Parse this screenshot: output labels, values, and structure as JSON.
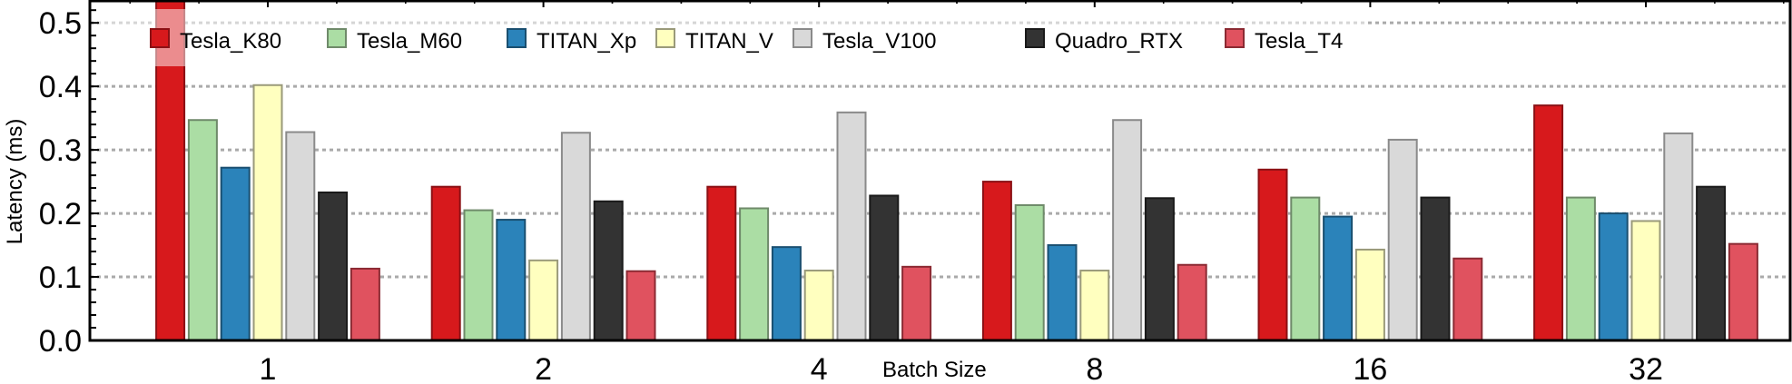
{
  "chart_data": {
    "type": "bar",
    "title": "",
    "xlabel": "Batch Size",
    "ylabel": "Latency (ms)",
    "ylim": [
      0.0,
      0.536
    ],
    "yticks": [
      "0.0",
      "0.1",
      "0.2",
      "0.3",
      "0.4",
      "0.5"
    ],
    "ytick_values": [
      0.0,
      0.1,
      0.2,
      0.3,
      0.4,
      0.5
    ],
    "grid": "horizontal-dotted",
    "legend_position": "top (single row inside plot)",
    "categories": [
      "1",
      "2",
      "4",
      "8",
      "16",
      "32"
    ],
    "series": [
      {
        "name": "Tesla_K80",
        "color": "#d7191c",
        "edge": "#8b1014",
        "values": [
          0.6,
          0.242,
          0.242,
          0.25,
          0.269,
          0.37
        ],
        "note": "batch 1 value exceeds axis (clipped)"
      },
      {
        "name": "Tesla_M60",
        "color": "#abdda4",
        "edge": "#6f8a6a",
        "values": [
          0.347,
          0.205,
          0.208,
          0.213,
          0.225,
          0.225
        ]
      },
      {
        "name": "TITAN_Xp",
        "color": "#2b83ba",
        "edge": "#1a4f70",
        "values": [
          0.272,
          0.19,
          0.147,
          0.15,
          0.195,
          0.2
        ]
      },
      {
        "name": "TITAN_V",
        "color": "#ffffbf",
        "edge": "#9a9a7a",
        "values": [
          0.402,
          0.126,
          0.11,
          0.11,
          0.143,
          0.188
        ]
      },
      {
        "name": "Tesla_V100",
        "color": "#d9d9d9",
        "edge": "#8a8a8a",
        "values": [
          0.328,
          0.327,
          0.359,
          0.347,
          0.316,
          0.326
        ]
      },
      {
        "name": "Quadro_RTX",
        "color": "#333333",
        "edge": "#1a1a1a",
        "values": [
          0.233,
          0.219,
          0.228,
          0.224,
          0.225,
          0.242
        ]
      },
      {
        "name": "Tesla_T4",
        "color": "#e0525f",
        "edge": "#8b2a33",
        "values": [
          0.113,
          0.109,
          0.116,
          0.119,
          0.129,
          0.152
        ]
      }
    ]
  }
}
